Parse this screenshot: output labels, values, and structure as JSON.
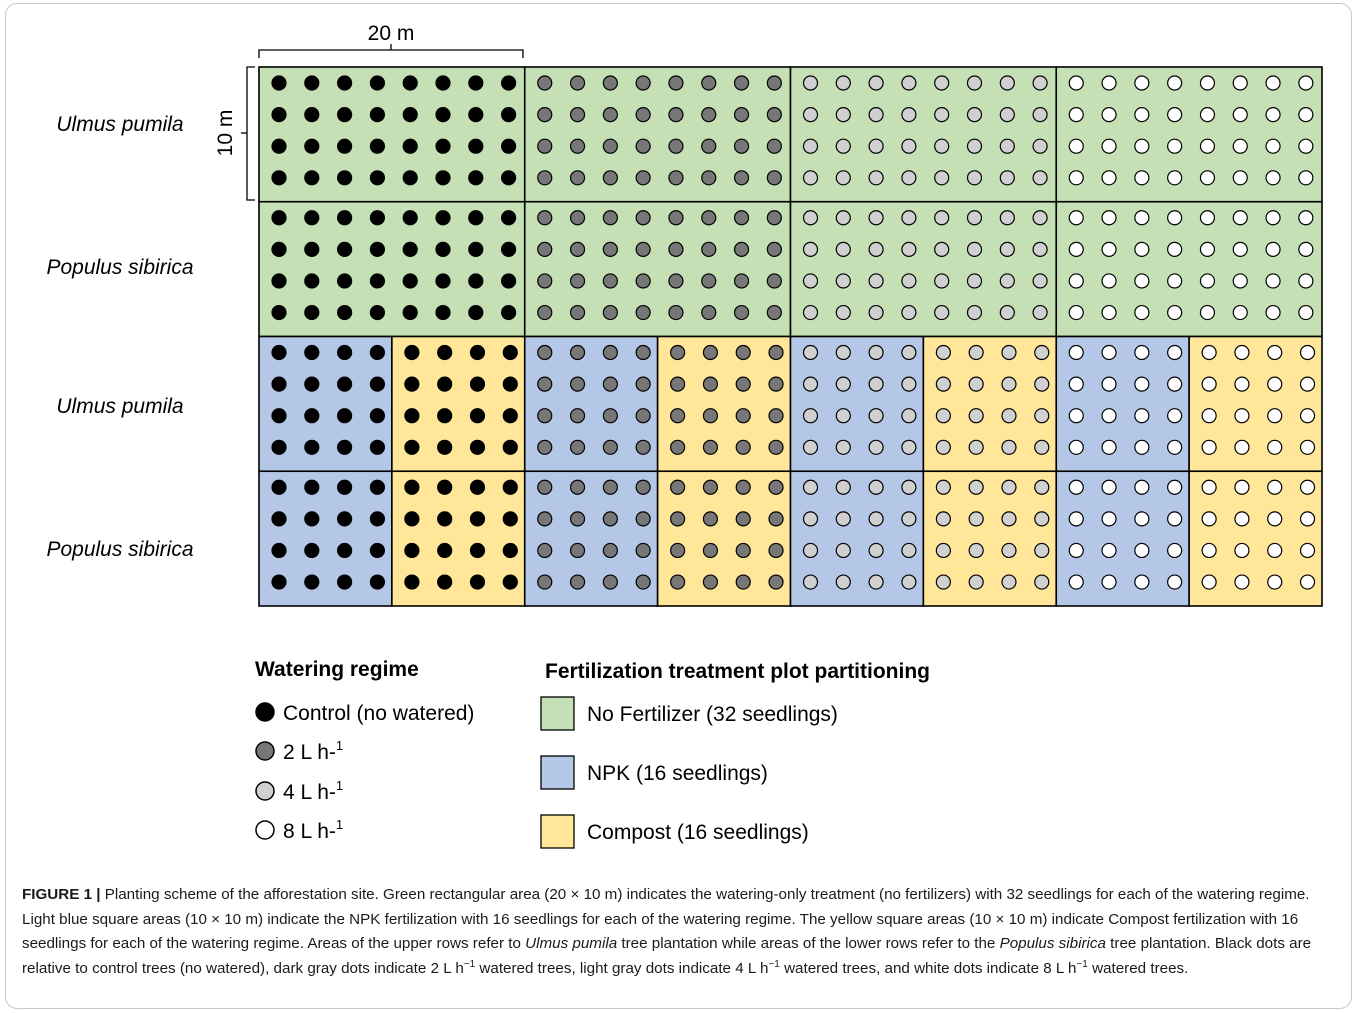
{
  "scale_width_label": "20 m",
  "scale_height_label": "10 m",
  "row_labels": [
    "Ulmus pumila",
    "Populus sibirica",
    "Ulmus pumila",
    "Populus sibirica"
  ],
  "colors": {
    "no_fertilizer": "#c5e0b4",
    "npk": "#b4c7e7",
    "compost": "#ffe699",
    "dot_control": "#000000",
    "dot_2L": "#777777",
    "dot_4L": "#d0d0d0",
    "dot_8L": "#ffffff"
  },
  "watering_legend": {
    "title": "Watering regime",
    "items": [
      {
        "label": "Control (no watered)",
        "sup": "",
        "color": "#000000"
      },
      {
        "label": "2 L h-",
        "sup": "1",
        "color": "#777777"
      },
      {
        "label": "4 L h-",
        "sup": "1",
        "color": "#d0d0d0"
      },
      {
        "label": "8 L h-",
        "sup": "1",
        "color": "#ffffff"
      }
    ]
  },
  "fert_legend": {
    "title": "Fertilization treatment plot partitioning",
    "items": [
      {
        "label": "No Fertilizer (32 seedlings)",
        "color": "#c5e0b4"
      },
      {
        "label": "NPK (16 seedlings)",
        "color": "#b4c7e7"
      },
      {
        "label": "Compost (16 seedlings)",
        "color": "#ffe699"
      }
    ]
  },
  "caption": {
    "fig": "FIGURE 1 |",
    "t1": " Planting scheme of the afforestation site. Green rectangular area (20 × 10 m) indicates the watering-only treatment (no fertilizers) with 32 seedlings for each of the watering regime. Light blue square areas (10 × 10 m) indicate the NPK fertilization with 16 seedlings for each of the watering regime. The yellow square areas (10 × 10 m) indicate Compost fertilization with 16 seedlings for each of the watering regime. Areas of the upper rows refer to ",
    "sp1": "Ulmus pumila",
    "t2": " tree plantation while areas of the lower rows refer to the ",
    "sp2": "Populus sibirica",
    "t3": " tree plantation. Black dots are relative to control trees (no watered), dark gray dots indicate 2 L h",
    "s1": "−1",
    "t4": " watered trees, light gray dots indicate 4 L h",
    "s2": "−1",
    "t5": " watered trees, and white dots indicate 8 L h",
    "s3": "−1",
    "t6": " watered trees."
  }
}
